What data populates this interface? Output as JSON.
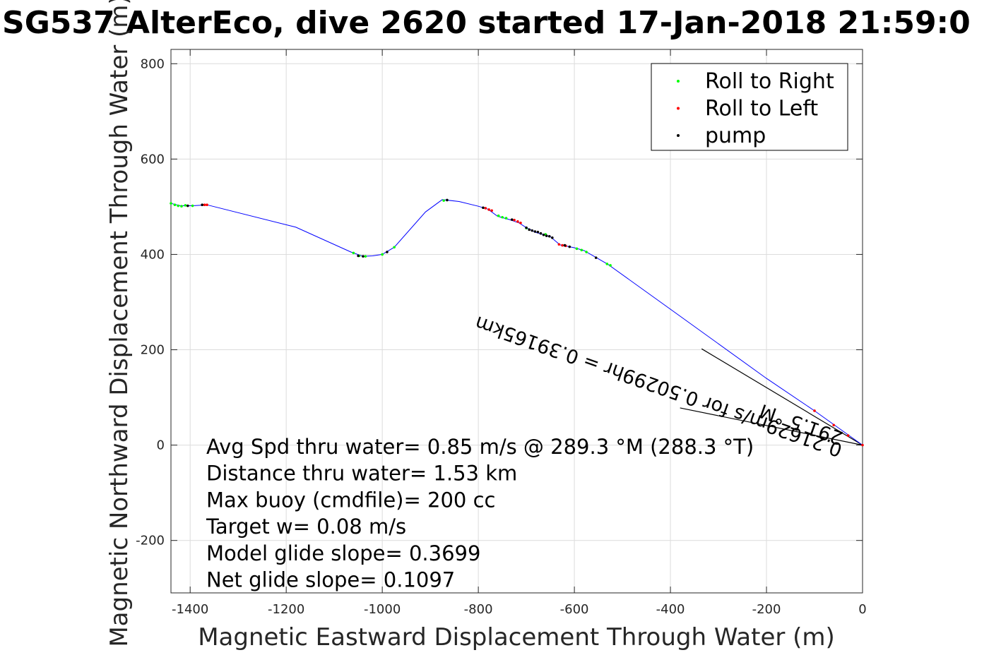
{
  "chart_data": {
    "type": "scatter",
    "title": "SG537 AlterEco, dive 2620 started 17-Jan-2018 21:59:0",
    "xlabel": "Magnetic Eastward Displacement Through Water (m)",
    "ylabel": "Magnetic Northward Displacement Through Water (m)",
    "xlim": [
      -1440,
      0
    ],
    "ylim": [
      -310,
      830
    ],
    "xticks": [
      -1400,
      -1200,
      -1000,
      -800,
      -600,
      -400,
      -200,
      0
    ],
    "yticks": [
      -200,
      0,
      200,
      400,
      600,
      800
    ],
    "grid": true,
    "legend_position": "top-right",
    "track_color": "#0000ff",
    "track": [
      [
        -1440,
        507
      ],
      [
        -1420,
        502
      ],
      [
        -1395,
        502
      ],
      [
        -1365,
        504
      ],
      [
        -1180,
        457
      ],
      [
        -1065,
        405
      ],
      [
        -1040,
        396
      ],
      [
        -1020,
        397
      ],
      [
        -1000,
        400
      ],
      [
        -975,
        415
      ],
      [
        -910,
        489
      ],
      [
        -875,
        515
      ],
      [
        -840,
        511
      ],
      [
        -800,
        501
      ],
      [
        -780,
        495
      ],
      [
        -760,
        480
      ],
      [
        -735,
        473
      ],
      [
        -715,
        466
      ],
      [
        -700,
        456
      ],
      [
        -680,
        446
      ],
      [
        -650,
        437
      ],
      [
        -630,
        420
      ],
      [
        -600,
        414
      ],
      [
        -580,
        408
      ],
      [
        -530,
        379
      ],
      [
        -400,
        285
      ],
      [
        -200,
        140
      ],
      [
        -100,
        72
      ],
      [
        0,
        0
      ]
    ],
    "series": [
      {
        "name": "Roll to Right",
        "color": "#00ff00",
        "points": [
          [
            -1440,
            507
          ],
          [
            -1432,
            504
          ],
          [
            -1425,
            502
          ],
          [
            -1418,
            501
          ],
          [
            -1410,
            503
          ],
          [
            -1395,
            502
          ],
          [
            -1060,
            403
          ],
          [
            -1048,
            397
          ],
          [
            -1035,
            396
          ],
          [
            -1000,
            400
          ],
          [
            -975,
            415
          ],
          [
            -872,
            513
          ],
          [
            -758,
            481
          ],
          [
            -750,
            478
          ],
          [
            -742,
            476
          ],
          [
            -595,
            412
          ],
          [
            -585,
            409
          ],
          [
            -575,
            405
          ],
          [
            -532,
            380
          ],
          [
            -525,
            377
          ],
          [
            -700,
            455
          ],
          [
            -660,
            442
          ]
        ]
      },
      {
        "name": "Roll to Left",
        "color": "#ff0000",
        "points": [
          [
            -1370,
            504
          ],
          [
            -1365,
            504
          ],
          [
            -785,
            497
          ],
          [
            -778,
            494
          ],
          [
            -772,
            492
          ],
          [
            -725,
            472
          ],
          [
            -718,
            469
          ],
          [
            -712,
            466
          ],
          [
            -632,
            421
          ],
          [
            -625,
            419
          ],
          [
            -618,
            418
          ],
          [
            -100,
            72
          ],
          [
            -60,
            42
          ],
          [
            -30,
            20
          ],
          [
            0,
            0
          ]
        ]
      },
      {
        "name": "pump",
        "color": "#000000",
        "points": [
          [
            -700,
            456
          ],
          [
            -694,
            452
          ],
          [
            -688,
            450
          ],
          [
            -682,
            448
          ],
          [
            -676,
            447
          ],
          [
            -670,
            444
          ],
          [
            -664,
            441
          ],
          [
            -658,
            439
          ],
          [
            -652,
            438
          ],
          [
            -646,
            435
          ],
          [
            -1405,
            502
          ],
          [
            -1375,
            504
          ],
          [
            -1050,
            397
          ],
          [
            -1040,
            396
          ],
          [
            -990,
            405
          ],
          [
            -865,
            514
          ],
          [
            -790,
            498
          ],
          [
            -730,
            473
          ],
          [
            -620,
            419
          ],
          [
            -610,
            416
          ],
          [
            -555,
            393
          ]
        ]
      }
    ],
    "annotations": [
      "Avg Spd thru water=  0.85 m/s @ 289.3 °M (288.3 °T)",
      "Distance thru water=  1.53 km",
      "Max buoy (cmdfile)= 200 cc",
      "Target w= 0.08 m/s",
      "Model glide slope= 0.3699",
      "Net glide slope= 0.1097"
    ],
    "current_label": "0.21629m/s for 0.50299hr = 0.39165km",
    "heading_label": "291.5 °M",
    "current_vectors": [
      [
        [
          0,
          0
        ],
        [
          -335,
          202
        ]
      ],
      [
        [
          0,
          0
        ],
        [
          -380,
          78
        ]
      ]
    ],
    "current_vector_color": "#000000"
  }
}
